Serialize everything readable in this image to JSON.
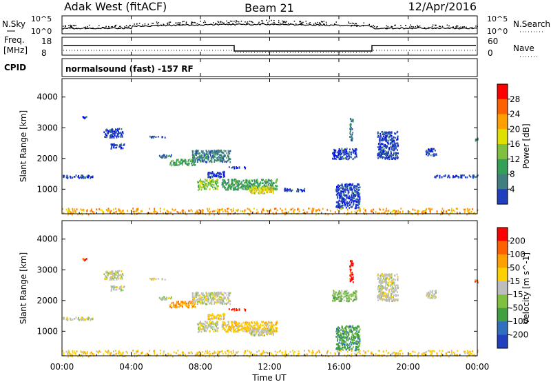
{
  "header": {
    "left": "Adak West (fitACF)",
    "center": "Beam 21",
    "right": "12/Apr/2016"
  },
  "top_panels": {
    "nsky_label": "N.Sky",
    "nsearch_label": "N.Search",
    "freq_label": "Freq.",
    "mhz_label": "[MHz]",
    "nave_label": "Nave",
    "cpid_label": "CPID",
    "cpid_text": "normalsound (fast) -157 RF",
    "noise_ticks_left": [
      "10^5",
      "10^0"
    ],
    "noise_ticks_right": [
      "10^5",
      "10^0"
    ],
    "freq_ticks": [
      "18",
      "8"
    ],
    "nave_ticks": [
      "60",
      "0"
    ]
  },
  "colors": {
    "power_scale": [
      "#0000ff",
      "#1f3fbf",
      "#3f7f7f",
      "#33a057",
      "#80c040",
      "#e0e000",
      "#ffa000",
      "#ff6000",
      "#ff0000"
    ],
    "velocity_scale": [
      "#2040c0",
      "#2f6fbf",
      "#40a040",
      "#80c040",
      "#bdbdbd",
      "#ffd000",
      "#ffa000",
      "#ff6000",
      "#ff0000"
    ]
  },
  "chart_data": [
    {
      "type": "heatmap",
      "name": "power",
      "xlabel": "",
      "ylabel": "Slant Range [km]",
      "yticks": [
        1000,
        2000,
        3000,
        4000
      ],
      "ylim": [
        200,
        4600
      ],
      "colorbar_label": "Power [dB]",
      "colorbar_ticks": [
        "28",
        "24",
        "20",
        "16",
        "12",
        "8",
        "4"
      ],
      "regions": [
        {
          "x0": 1.1,
          "x1": 1.4,
          "y0": 3320,
          "y1": 3400,
          "level": 1
        },
        {
          "x0": 2.4,
          "x1": 3.5,
          "y0": 2700,
          "y1": 3000,
          "level": 1
        },
        {
          "x0": 2.8,
          "x1": 3.6,
          "y0": 2350,
          "y1": 2500,
          "level": 1
        },
        {
          "x0": 5.0,
          "x1": 6.0,
          "y0": 2700,
          "y1": 2750,
          "level": 1
        },
        {
          "x0": 5.6,
          "x1": 6.3,
          "y0": 2050,
          "y1": 2150,
          "level": 2
        },
        {
          "x0": 6.2,
          "x1": 7.7,
          "y0": 1800,
          "y1": 2000,
          "level": 3
        },
        {
          "x0": 7.5,
          "x1": 9.7,
          "y0": 1900,
          "y1": 2300,
          "level": 2
        },
        {
          "x0": 9.6,
          "x1": 10.6,
          "y0": 1700,
          "y1": 1750,
          "level": 1
        },
        {
          "x0": 8.4,
          "x1": 9.4,
          "y0": 1400,
          "y1": 1600,
          "level": 1
        },
        {
          "x0": 7.8,
          "x1": 9.0,
          "y0": 1000,
          "y1": 1350,
          "level": 4
        },
        {
          "x0": 9.2,
          "x1": 12.4,
          "y0": 1000,
          "y1": 1350,
          "level": 3
        },
        {
          "x0": 10.8,
          "x1": 12.2,
          "y0": 880,
          "y1": 1100,
          "level": 5
        },
        {
          "x0": 0.0,
          "x1": 1.8,
          "y0": 1380,
          "y1": 1480,
          "level": 1
        },
        {
          "x0": 12.8,
          "x1": 14.0,
          "y0": 950,
          "y1": 1050,
          "level": 1
        },
        {
          "x0": 15.6,
          "x1": 17.0,
          "y0": 2000,
          "y1": 2350,
          "level": 1
        },
        {
          "x0": 15.8,
          "x1": 17.2,
          "y0": 400,
          "y1": 1200,
          "level": 1
        },
        {
          "x0": 16.6,
          "x1": 16.8,
          "y0": 2600,
          "y1": 3350,
          "level": 2
        },
        {
          "x0": 18.2,
          "x1": 19.4,
          "y0": 2000,
          "y1": 2900,
          "level": 1
        },
        {
          "x0": 21.0,
          "x1": 21.6,
          "y0": 2100,
          "y1": 2350,
          "level": 1
        },
        {
          "x0": 21.4,
          "x1": 24.0,
          "y0": 1400,
          "y1": 1480,
          "level": 1
        },
        {
          "x0": 23.8,
          "x1": 24.0,
          "y0": 2600,
          "y1": 2700,
          "level": 2
        },
        {
          "x0": 0.0,
          "x1": 24.0,
          "y0": 200,
          "y1": 400,
          "level": 6
        }
      ]
    },
    {
      "type": "heatmap",
      "name": "velocity",
      "xlabel": "Time UT",
      "ylabel": "Slant Range [km]",
      "xticks": [
        "00:00",
        "04:00",
        "08:00",
        "12:00",
        "16:00",
        "20:00",
        "00:00"
      ],
      "yticks": [
        1000,
        2000,
        3000,
        4000
      ],
      "ylim": [
        200,
        4600
      ],
      "colorbar_label": "Velocity [m s^-1]",
      "colorbar_ticks": [
        "200",
        "100",
        "50",
        "15",
        "-15",
        "-50",
        "-100",
        "-200"
      ],
      "regions": [
        {
          "x0": 1.1,
          "x1": 1.4,
          "y0": 3320,
          "y1": 3400,
          "level": 8
        },
        {
          "x0": 2.4,
          "x1": 3.5,
          "y0": 2700,
          "y1": 3000,
          "level": 4
        },
        {
          "x0": 2.8,
          "x1": 3.6,
          "y0": 2350,
          "y1": 2500,
          "level": 4
        },
        {
          "x0": 5.0,
          "x1": 6.0,
          "y0": 2700,
          "y1": 2750,
          "level": 4
        },
        {
          "x0": 5.6,
          "x1": 6.3,
          "y0": 2050,
          "y1": 2150,
          "level": 4
        },
        {
          "x0": 6.2,
          "x1": 7.7,
          "y0": 1800,
          "y1": 2000,
          "level": 6
        },
        {
          "x0": 7.5,
          "x1": 9.7,
          "y0": 1900,
          "y1": 2300,
          "level": 4
        },
        {
          "x0": 9.6,
          "x1": 10.6,
          "y0": 1700,
          "y1": 1750,
          "level": 8
        },
        {
          "x0": 8.4,
          "x1": 9.4,
          "y0": 1400,
          "y1": 1600,
          "level": 5
        },
        {
          "x0": 7.8,
          "x1": 9.0,
          "y0": 1000,
          "y1": 1350,
          "level": 4
        },
        {
          "x0": 9.2,
          "x1": 12.4,
          "y0": 1000,
          "y1": 1350,
          "level": 5
        },
        {
          "x0": 10.8,
          "x1": 12.2,
          "y0": 880,
          "y1": 1100,
          "level": 4
        },
        {
          "x0": 0.0,
          "x1": 1.8,
          "y0": 1380,
          "y1": 1480,
          "level": 4
        },
        {
          "x0": 15.6,
          "x1": 17.0,
          "y0": 2000,
          "y1": 2350,
          "level": 3
        },
        {
          "x0": 15.8,
          "x1": 17.2,
          "y0": 400,
          "y1": 1200,
          "level": 2
        },
        {
          "x0": 16.6,
          "x1": 16.8,
          "y0": 2600,
          "y1": 3350,
          "level": 8
        },
        {
          "x0": 18.2,
          "x1": 19.4,
          "y0": 2000,
          "y1": 2900,
          "level": 4
        },
        {
          "x0": 21.0,
          "x1": 21.6,
          "y0": 2100,
          "y1": 2350,
          "level": 4
        },
        {
          "x0": 23.8,
          "x1": 24.0,
          "y0": 2600,
          "y1": 2700,
          "level": 7
        },
        {
          "x0": 0.0,
          "x1": 24.0,
          "y0": 200,
          "y1": 400,
          "level": 5
        }
      ]
    }
  ]
}
